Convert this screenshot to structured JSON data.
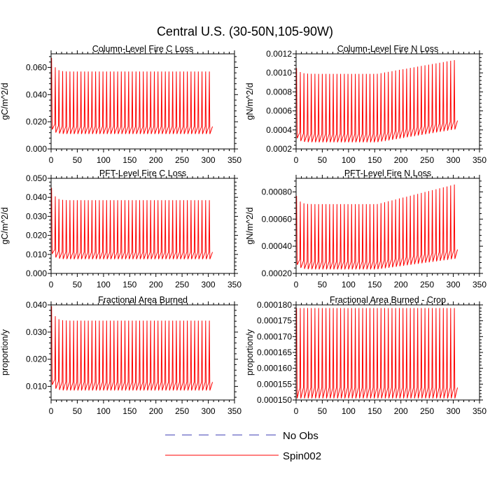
{
  "title": "Central U.S. (30-50N,105-90W)",
  "colors": {
    "spin": "#ff0000",
    "obs": "#3b3bb3",
    "axis": "#000000"
  },
  "legend": [
    {
      "label": "No Obs",
      "style": "dashed",
      "color": "#3b3bb3"
    },
    {
      "label": "Spin002",
      "style": "solid",
      "color": "#ff0000"
    }
  ],
  "chart_data": [
    {
      "type": "line",
      "title": "Column-Level Fire C Loss",
      "ylabel": "gC/m^2/d",
      "xlim": [
        0,
        350
      ],
      "ylim": [
        0,
        0.07
      ],
      "xticks": [
        0,
        50,
        100,
        150,
        200,
        250,
        300,
        350
      ],
      "xtick_labels": [
        "0",
        "50",
        "100",
        "150",
        "200",
        "250",
        "300",
        "350"
      ],
      "yticks": [
        0,
        0.02,
        0.04,
        0.06
      ],
      "ytick_labels": [
        "0.000",
        "0.020",
        "0.040",
        "0.060"
      ],
      "series": [
        {
          "name": "Spin002",
          "x_range": [
            1,
            308
          ],
          "period": 7,
          "peak_start": 0.067,
          "peak_mid": 0.057,
          "peak_end": 0.057,
          "trough_start": 0.015,
          "trough_mid": 0.011,
          "trough_end": 0.011
        }
      ]
    },
    {
      "type": "line",
      "title": "Column-Level Fire N Loss",
      "ylabel": "gN/m^2/d",
      "xlim": [
        0,
        350
      ],
      "ylim": [
        0.0002,
        0.0012
      ],
      "xticks": [
        0,
        50,
        100,
        150,
        200,
        250,
        300,
        350
      ],
      "xtick_labels": [
        "0",
        "50",
        "100",
        "150",
        "200",
        "250",
        "300",
        "350"
      ],
      "yticks": [
        0.0002,
        0.0004,
        0.0006,
        0.0008,
        0.001,
        0.0012
      ],
      "ytick_labels": [
        "0.0002",
        "0.0004",
        "0.0006",
        "0.0008",
        "0.0010",
        "0.0012"
      ],
      "series": [
        {
          "name": "Spin002",
          "x_range": [
            1,
            308
          ],
          "period": 7,
          "peak_start": 0.00105,
          "peak_mid": 0.00099,
          "peak_end": 0.00114,
          "trough_start": 0.00032,
          "trough_mid": 0.00027,
          "trough_end": 0.00041
        }
      ]
    },
    {
      "type": "line",
      "title": "PFT-Level Fire C Loss",
      "ylabel": "gC/m^2/d",
      "xlim": [
        0,
        350
      ],
      "ylim": [
        0,
        0.05
      ],
      "xticks": [
        0,
        50,
        100,
        150,
        200,
        250,
        300,
        350
      ],
      "xtick_labels": [
        "0",
        "50",
        "100",
        "150",
        "200",
        "250",
        "300",
        "350"
      ],
      "yticks": [
        0,
        0.01,
        0.02,
        0.03,
        0.04,
        0.05
      ],
      "ytick_labels": [
        "0.000",
        "0.010",
        "0.020",
        "0.030",
        "0.040",
        "0.050"
      ],
      "series": [
        {
          "name": "Spin002",
          "x_range": [
            1,
            308
          ],
          "period": 7,
          "peak_start": 0.045,
          "peak_mid": 0.0385,
          "peak_end": 0.0385,
          "trough_start": 0.011,
          "trough_mid": 0.0075,
          "trough_end": 0.0075
        }
      ]
    },
    {
      "type": "line",
      "title": "PFT-Level Fire N Loss",
      "ylabel": "gN/m^2/d",
      "xlim": [
        0,
        350
      ],
      "ylim": [
        0.0002,
        0.0009
      ],
      "xticks": [
        0,
        50,
        100,
        150,
        200,
        250,
        300,
        350
      ],
      "xtick_labels": [
        "0",
        "50",
        "100",
        "150",
        "200",
        "250",
        "300",
        "350"
      ],
      "yticks": [
        0.0002,
        0.0004,
        0.0006,
        0.0008
      ],
      "ytick_labels": [
        "0.00020",
        "0.00040",
        "0.00060",
        "0.00080"
      ],
      "series": [
        {
          "name": "Spin002",
          "x_range": [
            1,
            308
          ],
          "period": 7,
          "peak_start": 0.00077,
          "peak_mid": 0.00071,
          "peak_end": 0.00086,
          "trough_start": 0.00027,
          "trough_mid": 0.00023,
          "trough_end": 0.00031
        }
      ]
    },
    {
      "type": "line",
      "title": "Fractional Area Burned",
      "ylabel": "proportion/y",
      "xlim": [
        0,
        350
      ],
      "ylim": [
        0.005,
        0.04
      ],
      "xticks": [
        0,
        50,
        100,
        150,
        200,
        250,
        300,
        350
      ],
      "xtick_labels": [
        "0",
        "50",
        "100",
        "150",
        "200",
        "250",
        "300",
        "350"
      ],
      "yticks": [
        0.01,
        0.02,
        0.03,
        0.04
      ],
      "ytick_labels": [
        "0.010",
        "0.020",
        "0.030",
        "0.040"
      ],
      "series": [
        {
          "name": "Spin002",
          "x_range": [
            1,
            308
          ],
          "period": 7,
          "peak_start": 0.0395,
          "peak_mid": 0.0342,
          "peak_end": 0.0342,
          "trough_start": 0.011,
          "trough_mid": 0.0085,
          "trough_end": 0.0085
        }
      ]
    },
    {
      "type": "line",
      "title": "Fractional Area Burned - Crop",
      "ylabel": "proportion/y",
      "xlim": [
        0,
        350
      ],
      "ylim": [
        0.00015,
        0.00018
      ],
      "xticks": [
        0,
        50,
        100,
        150,
        200,
        250,
        300,
        350
      ],
      "xtick_labels": [
        "0",
        "50",
        "100",
        "150",
        "200",
        "250",
        "300",
        "350"
      ],
      "yticks": [
        0.00015,
        0.000155,
        0.00016,
        0.000165,
        0.00017,
        0.000175,
        0.00018
      ],
      "ytick_labels": [
        "0.000150",
        "0.000155",
        "0.000160",
        "0.000165",
        "0.000170",
        "0.000175",
        "0.000180"
      ],
      "series": [
        {
          "name": "Spin002",
          "x_range": [
            1,
            308
          ],
          "period": 7,
          "peak_start": 0.000179,
          "peak_mid": 0.000179,
          "peak_end": 0.000179,
          "trough_start": 0.0001505,
          "trough_mid": 0.0001505,
          "trough_end": 0.0001505
        }
      ]
    }
  ]
}
